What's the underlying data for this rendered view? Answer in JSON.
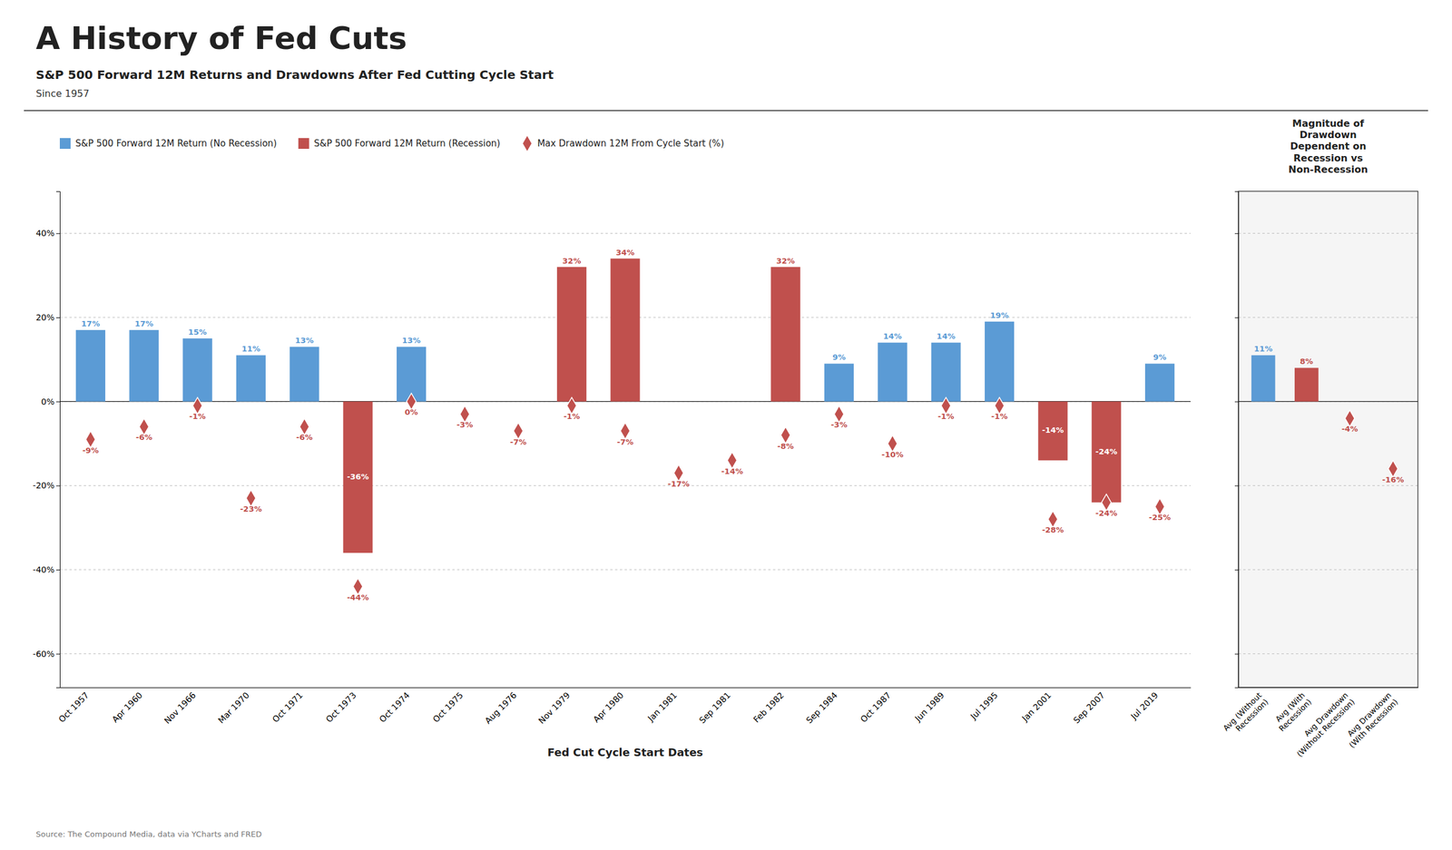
{
  "chart_data": [
    {
      "type": "bar",
      "title": "A History of Fed Cuts",
      "subtitle": "S&P 500 Forward 12M Returns and Drawdowns After Fed Cutting Cycle Start",
      "xlabel": "Fed Cut Cycle Start Dates",
      "annotations": [
        "Since 1957",
        "Source: The Compound Media, data via YCharts and FRED"
      ],
      "categories": [
        "Oct 1957",
        "Apr 1960",
        "Nov 1966",
        "Mar 1970",
        "Oct 1971",
        "Oct 1973",
        "Oct 1974",
        "Oct 1975",
        "Aug 1976",
        "Nov 1979",
        "Apr 1980",
        "Jan 1981",
        "Sep 1981",
        "Feb 1982",
        "Sep 1984",
        "Oct 1987",
        "Jun 1989",
        "Jul 1995",
        "Jan 2001",
        "Sep 2007",
        "Jul 2019"
      ],
      "series": [
        {
          "name": "S&P 500 Forward 12M Return (No Recession)",
          "type": "bar",
          "color": "#5b9bd5",
          "values": [
            17,
            17,
            15,
            11,
            13,
            null,
            13,
            null,
            null,
            null,
            null,
            null,
            null,
            null,
            9,
            14,
            14,
            19,
            null,
            null,
            9
          ],
          "value_labels": [
            "17%",
            "17%",
            "15%",
            "11%",
            "13%",
            null,
            "13%",
            null,
            null,
            null,
            null,
            null,
            null,
            null,
            "9%",
            "14%",
            "14%",
            "19%",
            null,
            null,
            "9%"
          ]
        },
        {
          "name": "S&P 500 Forward 12M Return (Recession)",
          "type": "bar",
          "color": "#c0504d",
          "values": [
            null,
            null,
            null,
            null,
            null,
            -36,
            null,
            null,
            null,
            32,
            34,
            null,
            null,
            32,
            null,
            null,
            null,
            null,
            -14,
            -24,
            null
          ],
          "value_labels": [
            null,
            null,
            null,
            null,
            null,
            "-36%",
            null,
            null,
            null,
            "32%",
            "34%",
            null,
            null,
            "32%",
            null,
            null,
            null,
            null,
            "-14%",
            "-24%",
            null
          ]
        },
        {
          "name": "Max Drawdown 12M From Cycle Start (%)",
          "type": "scatter",
          "marker": "diamond",
          "color": "#c0504d",
          "values": [
            -9,
            -6,
            -1,
            -23,
            -6,
            -44,
            0,
            -3,
            -7,
            -1,
            -7,
            -17,
            -14,
            -8,
            -3,
            -10,
            -1,
            -1,
            -28,
            -24,
            -25
          ],
          "value_labels": [
            "-9%",
            "-6%",
            "-1%",
            "-23%",
            "-6%",
            "-44%",
            "0%",
            "-3%",
            "-7%",
            "-1%",
            "-7%",
            "-17%",
            "-14%",
            "-8%",
            "-3%",
            "-10%",
            "-1%",
            "-1%",
            "-28%",
            "-24%",
            "-25%"
          ]
        }
      ],
      "ylim": [
        -68,
        50
      ],
      "yticks": [
        {
          "value": -60,
          "label": "-60%"
        },
        {
          "value": -40,
          "label": "-40%"
        },
        {
          "value": -20,
          "label": "-20%"
        },
        {
          "value": 0,
          "label": "0%"
        },
        {
          "value": 20,
          "label": "20%"
        },
        {
          "value": 40,
          "label": "40%"
        }
      ],
      "grid": true,
      "legend": "upper left",
      "data_labels": true
    },
    {
      "type": "bar",
      "annotations": [
        "Magnitude of\nDrawdown\nDependent on\nRecession vs\nNon-Recession"
      ],
      "categories": [
        "Avg (Without\nRecession)",
        "Avg (With\nRecession)",
        "Avg Drawdown\n(Without Recession)",
        "Avg Drawdown\n(With Recession)"
      ],
      "series": [
        {
          "type": "bar",
          "color": "#5b9bd5",
          "values": [
            11,
            null,
            null,
            null
          ],
          "value_labels": [
            "11%",
            null,
            null,
            null
          ]
        },
        {
          "type": "bar",
          "color": "#c0504d",
          "values": [
            null,
            8,
            null,
            null
          ],
          "value_labels": [
            null,
            "8%",
            null,
            null
          ]
        },
        {
          "type": "scatter",
          "marker": "diamond",
          "color": "#c0504d",
          "values": [
            null,
            null,
            -4,
            -16
          ],
          "value_labels": [
            null,
            null,
            "-4%",
            "-16%"
          ]
        }
      ],
      "ylim": [
        -68,
        50
      ],
      "yticks": [
        -60,
        -40,
        -20,
        0,
        20,
        40
      ],
      "grid": true,
      "tick_labels": "x",
      "data_labels": true
    }
  ]
}
